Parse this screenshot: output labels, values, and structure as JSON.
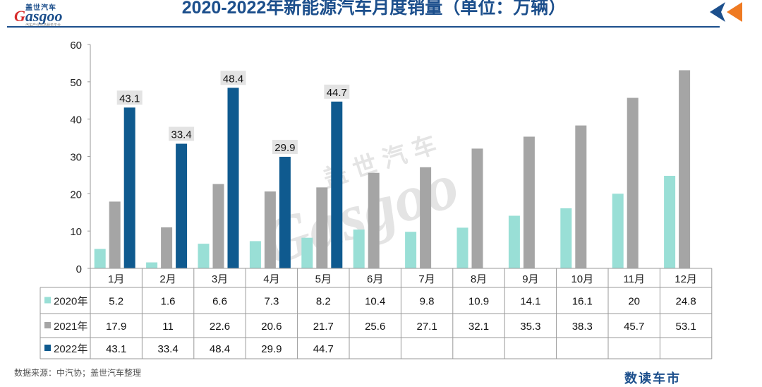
{
  "header": {
    "title": "2020-2022年新能源汽车月度销量（单位：万辆）",
    "logo_cn": "盖世汽车",
    "logo_en_first": "G",
    "logo_en_rest": "asgoo",
    "logo_tag": "汽车产业信息服务平台"
  },
  "watermark": {
    "cn": "盖世汽车",
    "en": "Gasgoo"
  },
  "colors": {
    "series_2020": "#99dfd6",
    "series_2021": "#a5a5a5",
    "series_2022": "#0f5a8f",
    "title": "#1c4f8c",
    "arrow_orange": "#ef7a22",
    "arrow_blue": "#1c4f8c"
  },
  "chart_data": {
    "type": "bar",
    "title": "2020-2022年新能源汽车月度销量（单位：万辆）",
    "xlabel": "",
    "ylabel": "",
    "ylim": [
      0,
      60
    ],
    "yticks": [
      0,
      10,
      20,
      30,
      40,
      50,
      60
    ],
    "grid": false,
    "categories": [
      "1月",
      "2月",
      "3月",
      "4月",
      "5月",
      "6月",
      "7月",
      "8月",
      "9月",
      "10月",
      "11月",
      "12月"
    ],
    "series": [
      {
        "name": "2020年",
        "values": [
          5.2,
          1.6,
          6.6,
          7.3,
          8.2,
          10.4,
          9.8,
          10.9,
          14.1,
          16.1,
          20,
          24.8
        ]
      },
      {
        "name": "2021年",
        "values": [
          17.9,
          11,
          22.6,
          20.6,
          21.7,
          25.6,
          27.1,
          32.1,
          35.3,
          38.3,
          45.7,
          53.1
        ]
      },
      {
        "name": "2022年",
        "values": [
          43.1,
          33.4,
          48.4,
          29.9,
          44.7,
          null,
          null,
          null,
          null,
          null,
          null,
          null
        ]
      }
    ],
    "data_labels": [
      {
        "series": "2022年",
        "category": "1月",
        "text": "43.1"
      },
      {
        "series": "2022年",
        "category": "2月",
        "text": "33.4"
      },
      {
        "series": "2022年",
        "category": "3月",
        "text": "48.4"
      },
      {
        "series": "2022年",
        "category": "4月",
        "text": "29.9"
      },
      {
        "series": "2022年",
        "category": "5月",
        "text": "44.7"
      }
    ],
    "data_table": true
  },
  "footer": {
    "source": "数据来源：中汽协；盖世汽车整理",
    "brand": "数读车市"
  }
}
